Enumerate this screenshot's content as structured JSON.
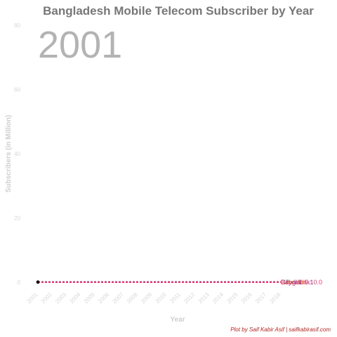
{
  "chart_data": {
    "type": "line",
    "title": "Bangladesh Mobile Telecom Subscriber by Year",
    "current_year": "2001",
    "xlabel": "Year",
    "ylabel": "Subscribers (in Million)",
    "caption": "Plot by Saif Kabir Asif | saifkabirasif.com",
    "x": [
      "2001",
      "2002",
      "2003",
      "2004",
      "2005",
      "2006",
      "2007",
      "2008",
      "2009",
      "2010",
      "2011",
      "2012",
      "2013",
      "2014",
      "2015",
      "2016",
      "2017",
      "2018"
    ],
    "ylim": [
      0,
      80
    ],
    "yticks": [
      0,
      20,
      40,
      60,
      80
    ],
    "grid": false,
    "series": [
      {
        "name": "GP",
        "label": "GP: 0.1",
        "value": 0.1,
        "color": "#5b9bd5"
      },
      {
        "name": "Robi",
        "label": "Robi: 0.0",
        "value": 0.02,
        "color": "#e6a000"
      },
      {
        "name": "Citycell",
        "label": "Citycell: 0.1",
        "value": 0.08,
        "color": "#8b3a8b"
      },
      {
        "name": "Banglalink",
        "label": "Banglalink: 0.0",
        "value": 0.0,
        "color": "#e8336d"
      }
    ]
  }
}
